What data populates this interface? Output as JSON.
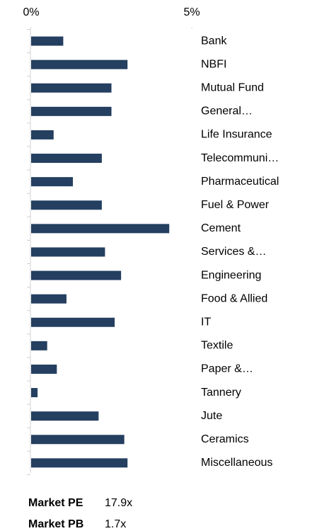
{
  "chart_data": {
    "type": "bar",
    "orientation": "horizontal",
    "categories": [
      "Bank",
      "NBFI",
      "Mutual Fund",
      "General…",
      "Life Insurance",
      "Telecommuni…",
      "Pharmaceutical",
      "Fuel & Power",
      "Cement",
      "Services &…",
      "Engineering",
      "Food & Allied",
      "IT",
      "Textile",
      "Paper &…",
      "Tannery",
      "Jute",
      "Ceramics",
      "Miscellaneous"
    ],
    "values": [
      1.0,
      3.0,
      2.5,
      2.5,
      0.7,
      2.2,
      1.3,
      2.2,
      4.3,
      2.3,
      2.8,
      1.1,
      2.6,
      0.5,
      0.8,
      0.2,
      2.1,
      2.9,
      3.0
    ],
    "color": "#243f60",
    "xlim": [
      0,
      5
    ],
    "xticks": [
      {
        "value": 0,
        "label": "0%"
      },
      {
        "value": 5,
        "label": "5%"
      }
    ]
  },
  "footer": [
    {
      "label": "Market PE",
      "value": "17.9x"
    },
    {
      "label": "Market PB",
      "value": "1.7x"
    }
  ]
}
